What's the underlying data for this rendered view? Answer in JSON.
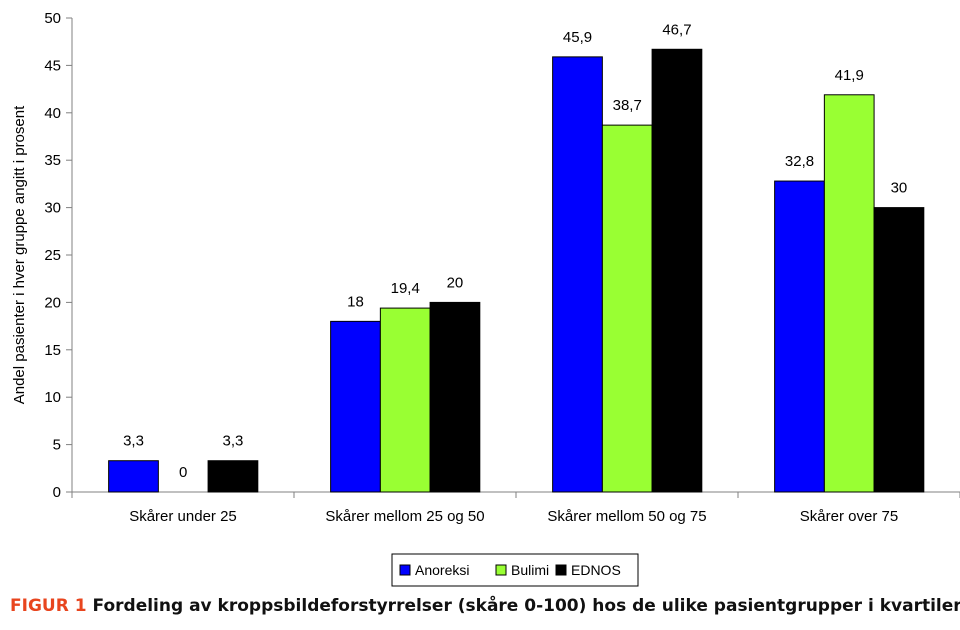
{
  "chart_data": {
    "type": "bar",
    "title": "",
    "xlabel": "",
    "ylabel": "Andel pasienter i hver gruppe angitt i prosent",
    "ylim": [
      0,
      50
    ],
    "yticks": [
      0,
      5,
      10,
      15,
      20,
      25,
      30,
      35,
      40,
      45,
      50
    ],
    "categories": [
      "Skårer under 25",
      "Skårer mellom 25 og 50",
      "Skårer mellom 50 og 75",
      "Skårer over 75"
    ],
    "series": [
      {
        "name": "Anoreksi",
        "color": "#0000ff",
        "values": [
          3.3,
          18,
          45.9,
          32.8
        ],
        "labels": [
          "3,3",
          "18",
          "45,9",
          "32,8"
        ]
      },
      {
        "name": "Bulimi",
        "color": "#99ff33",
        "values": [
          0,
          19.4,
          38.7,
          41.9
        ],
        "labels": [
          "0",
          "19,4",
          "38,7",
          "41,9"
        ]
      },
      {
        "name": "EDNOS",
        "color": "#000000",
        "values": [
          3.3,
          20,
          46.7,
          30
        ],
        "labels": [
          "3,3",
          "20",
          "46,7",
          "30"
        ]
      }
    ],
    "legend_position": "bottom-center"
  },
  "caption": {
    "tag": "FIGUR 1",
    "text": "Fordeling av kroppsbildeforstyrrelser (skåre 0-100) hos de ulike pasientgrupper i kvartiler."
  }
}
